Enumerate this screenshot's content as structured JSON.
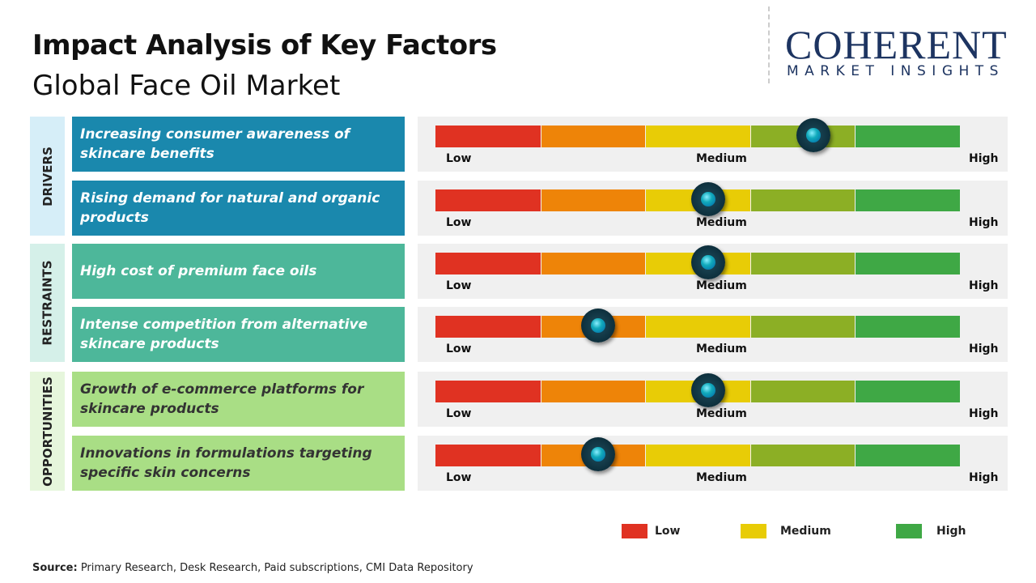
{
  "title": "Impact Analysis of Key Factors",
  "subtitle": "Global Face Oil Market",
  "logo": {
    "line1": "COHERENT",
    "line2": "MARKET INSIGHTS"
  },
  "chart_data": {
    "type": "gauge",
    "scale_labels": [
      "Low",
      "Medium",
      "High"
    ],
    "segment_colors": [
      "#e03222",
      "#ee8408",
      "#e8cc06",
      "#8caf25",
      "#3fa845"
    ],
    "categories": [
      {
        "name": "DRIVERS",
        "color": "#d6eef8",
        "card_color": "#1a88ad",
        "factors": [
          {
            "label": "Increasing consumer awareness of skincare benefits",
            "value": 0.72
          },
          {
            "label": "Rising demand for natural and organic products",
            "value": 0.52
          }
        ]
      },
      {
        "name": "RESTRAINTS",
        "color": "#d5f0e9",
        "card_color": "#4db79a",
        "factors": [
          {
            "label": "High cost of premium face oils",
            "value": 0.52
          },
          {
            "label": "Intense competition from alternative skincare products",
            "value": 0.31
          }
        ]
      },
      {
        "name": "OPPORTUNITIES",
        "color": "#e6f6dc",
        "card_color": "#a9de85",
        "factors": [
          {
            "label": "Growth of e-commerce platforms for skincare products",
            "value": 0.52
          },
          {
            "label": "Innovations in formulations targeting specific skin concerns",
            "value": 0.31
          }
        ]
      }
    ],
    "legend": [
      {
        "label": "Low",
        "color": "#e03222"
      },
      {
        "label": "Medium",
        "color": "#e8cc06"
      },
      {
        "label": "High",
        "color": "#3fa845"
      }
    ]
  },
  "source": {
    "label": "Source:",
    "text": " Primary Research, Desk Research, Paid subscriptions, CMI Data Repository"
  }
}
